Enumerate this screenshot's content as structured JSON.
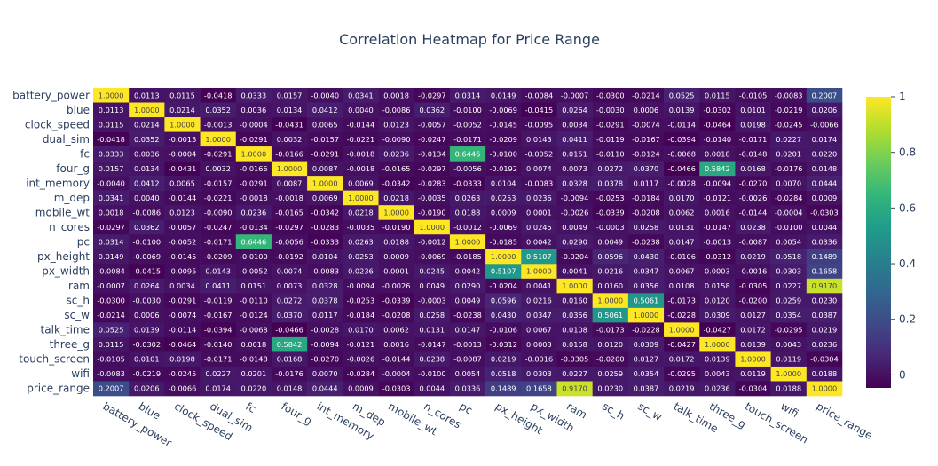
{
  "chart_data": {
    "type": "heatmap",
    "title": "Correlation Heatmap for Price Range",
    "colorscale": "Viridis",
    "zlim": [
      -0.0466,
      1
    ],
    "colorbar": {
      "ticks": [
        "0",
        "0.2",
        "0.4",
        "0.6",
        "0.8",
        "1"
      ],
      "tickvals": [
        0,
        0.2,
        0.4,
        0.6,
        0.8,
        1
      ]
    },
    "labels": [
      "battery_power",
      "blue",
      "clock_speed",
      "dual_sim",
      "fc",
      "four_g",
      "int_memory",
      "m_dep",
      "mobile_wt",
      "n_cores",
      "pc",
      "px_height",
      "px_width",
      "ram",
      "sc_h",
      "sc_w",
      "talk_time",
      "three_g",
      "touch_screen",
      "wifi",
      "price_range"
    ],
    "matrix": [
      [
        1.0,
        0.0113,
        0.0115,
        -0.0418,
        0.0333,
        0.0157,
        -0.004,
        0.0341,
        0.0018,
        -0.0297,
        0.0314,
        0.0149,
        -0.0084,
        -0.0007,
        -0.03,
        -0.0214,
        0.0525,
        0.0115,
        -0.0105,
        -0.0083,
        0.2007
      ],
      [
        0.0113,
        1.0,
        0.0214,
        0.0352,
        0.0036,
        0.0134,
        0.0412,
        0.004,
        -0.0086,
        0.0362,
        -0.01,
        -0.0069,
        -0.0415,
        0.0264,
        -0.003,
        0.0006,
        0.0139,
        -0.0302,
        0.0101,
        -0.0219,
        0.0206
      ],
      [
        0.0115,
        0.0214,
        1.0,
        -0.0013,
        -0.0004,
        -0.0431,
        0.0065,
        -0.0144,
        0.0123,
        -0.0057,
        -0.0052,
        -0.0145,
        -0.0095,
        0.0034,
        -0.0291,
        -0.0074,
        -0.0114,
        -0.0464,
        0.0198,
        -0.0245,
        -0.0066
      ],
      [
        -0.0418,
        0.0352,
        -0.0013,
        1.0,
        -0.0291,
        0.0032,
        -0.0157,
        -0.0221,
        -0.009,
        -0.0247,
        -0.0171,
        -0.0209,
        0.0143,
        0.0411,
        -0.0119,
        -0.0167,
        -0.0394,
        -0.014,
        -0.0171,
        0.0227,
        0.0174
      ],
      [
        0.0333,
        0.0036,
        -0.0004,
        -0.0291,
        1.0,
        -0.0166,
        -0.0291,
        -0.0018,
        0.0236,
        -0.0134,
        0.6446,
        -0.01,
        -0.0052,
        0.0151,
        -0.011,
        -0.0124,
        -0.0068,
        0.0018,
        -0.0148,
        0.0201,
        0.022
      ],
      [
        0.0157,
        0.0134,
        -0.0431,
        0.0032,
        -0.0166,
        1.0,
        0.0087,
        -0.0018,
        -0.0165,
        -0.0297,
        -0.0056,
        -0.0192,
        0.0074,
        0.0073,
        0.0272,
        0.037,
        -0.0466,
        0.5842,
        0.0168,
        -0.0176,
        0.0148
      ],
      [
        -0.004,
        0.0412,
        0.0065,
        -0.0157,
        -0.0291,
        0.0087,
        1.0,
        0.0069,
        -0.0342,
        -0.0283,
        -0.0333,
        0.0104,
        -0.0083,
        0.0328,
        0.0378,
        0.0117,
        -0.0028,
        -0.0094,
        -0.027,
        0.007,
        0.0444
      ],
      [
        0.0341,
        0.004,
        -0.0144,
        -0.0221,
        -0.0018,
        -0.0018,
        0.0069,
        1.0,
        0.0218,
        -0.0035,
        0.0263,
        0.0253,
        0.0236,
        -0.0094,
        -0.0253,
        -0.0184,
        0.017,
        -0.0121,
        -0.0026,
        -0.0284,
        0.0009
      ],
      [
        0.0018,
        -0.0086,
        0.0123,
        -0.009,
        0.0236,
        -0.0165,
        -0.0342,
        0.0218,
        1.0,
        -0.019,
        0.0188,
        0.0009,
        0.0001,
        -0.0026,
        -0.0339,
        -0.0208,
        0.0062,
        0.0016,
        -0.0144,
        -0.0004,
        -0.0303
      ],
      [
        -0.0297,
        0.0362,
        -0.0057,
        -0.0247,
        -0.0134,
        -0.0297,
        -0.0283,
        -0.0035,
        -0.019,
        1.0,
        -0.0012,
        -0.0069,
        0.0245,
        0.0049,
        -0.0003,
        0.0258,
        0.0131,
        -0.0147,
        0.0238,
        -0.01,
        0.0044
      ],
      [
        0.0314,
        -0.01,
        -0.0052,
        -0.0171,
        0.6446,
        -0.0056,
        -0.0333,
        0.0263,
        0.0188,
        -0.0012,
        1.0,
        -0.0185,
        0.0042,
        0.029,
        0.0049,
        -0.0238,
        0.0147,
        -0.0013,
        -0.0087,
        0.0054,
        0.0336
      ],
      [
        0.0149,
        -0.0069,
        -0.0145,
        -0.0209,
        -0.01,
        -0.0192,
        0.0104,
        0.0253,
        0.0009,
        -0.0069,
        -0.0185,
        1.0,
        0.5107,
        -0.0204,
        0.0596,
        0.043,
        -0.0106,
        -0.0312,
        0.0219,
        0.0518,
        0.1489
      ],
      [
        -0.0084,
        -0.0415,
        -0.0095,
        0.0143,
        -0.0052,
        0.0074,
        -0.0083,
        0.0236,
        0.0001,
        0.0245,
        0.0042,
        0.5107,
        1.0,
        0.0041,
        0.0216,
        0.0347,
        0.0067,
        0.0003,
        -0.0016,
        0.0303,
        0.1658
      ],
      [
        -0.0007,
        0.0264,
        0.0034,
        0.0411,
        0.0151,
        0.0073,
        0.0328,
        -0.0094,
        -0.0026,
        0.0049,
        0.029,
        -0.0204,
        0.0041,
        1.0,
        0.016,
        0.0356,
        0.0108,
        0.0158,
        -0.0305,
        0.0227,
        0.917
      ],
      [
        -0.03,
        -0.003,
        -0.0291,
        -0.0119,
        -0.011,
        0.0272,
        0.0378,
        -0.0253,
        -0.0339,
        -0.0003,
        0.0049,
        0.0596,
        0.0216,
        0.016,
        1.0,
        0.5061,
        -0.0173,
        0.012,
        -0.02,
        0.0259,
        0.023
      ],
      [
        -0.0214,
        0.0006,
        -0.0074,
        -0.0167,
        -0.0124,
        0.037,
        0.0117,
        -0.0184,
        -0.0208,
        0.0258,
        -0.0238,
        0.043,
        0.0347,
        0.0356,
        0.5061,
        1.0,
        -0.0228,
        0.0309,
        0.0127,
        0.0354,
        0.0387
      ],
      [
        0.0525,
        0.0139,
        -0.0114,
        -0.0394,
        -0.0068,
        -0.0466,
        -0.0028,
        0.017,
        0.0062,
        0.0131,
        0.0147,
        -0.0106,
        0.0067,
        0.0108,
        -0.0173,
        -0.0228,
        1.0,
        -0.0427,
        0.0172,
        -0.0295,
        0.0219
      ],
      [
        0.0115,
        -0.0302,
        -0.0464,
        -0.014,
        0.0018,
        0.5842,
        -0.0094,
        -0.0121,
        0.0016,
        -0.0147,
        -0.0013,
        -0.0312,
        0.0003,
        0.0158,
        0.012,
        0.0309,
        -0.0427,
        1.0,
        0.0139,
        0.0043,
        0.0236
      ],
      [
        -0.0105,
        0.0101,
        0.0198,
        -0.0171,
        -0.0148,
        0.0168,
        -0.027,
        -0.0026,
        -0.0144,
        0.0238,
        -0.0087,
        0.0219,
        -0.0016,
        -0.0305,
        -0.02,
        0.0127,
        0.0172,
        0.0139,
        1.0,
        0.0119,
        -0.0304
      ],
      [
        -0.0083,
        -0.0219,
        -0.0245,
        0.0227,
        0.0201,
        -0.0176,
        0.007,
        -0.0284,
        -0.0004,
        -0.01,
        0.0054,
        0.0518,
        0.0303,
        0.0227,
        0.0259,
        0.0354,
        -0.0295,
        0.0043,
        0.0119,
        1.0,
        0.0188
      ],
      [
        0.2007,
        0.0206,
        -0.0066,
        0.0174,
        0.022,
        0.0148,
        0.0444,
        0.0009,
        -0.0303,
        0.0044,
        0.0336,
        0.1489,
        0.1658,
        0.917,
        0.023,
        0.0387,
        0.0219,
        0.0236,
        -0.0304,
        0.0188,
        1.0
      ]
    ]
  }
}
